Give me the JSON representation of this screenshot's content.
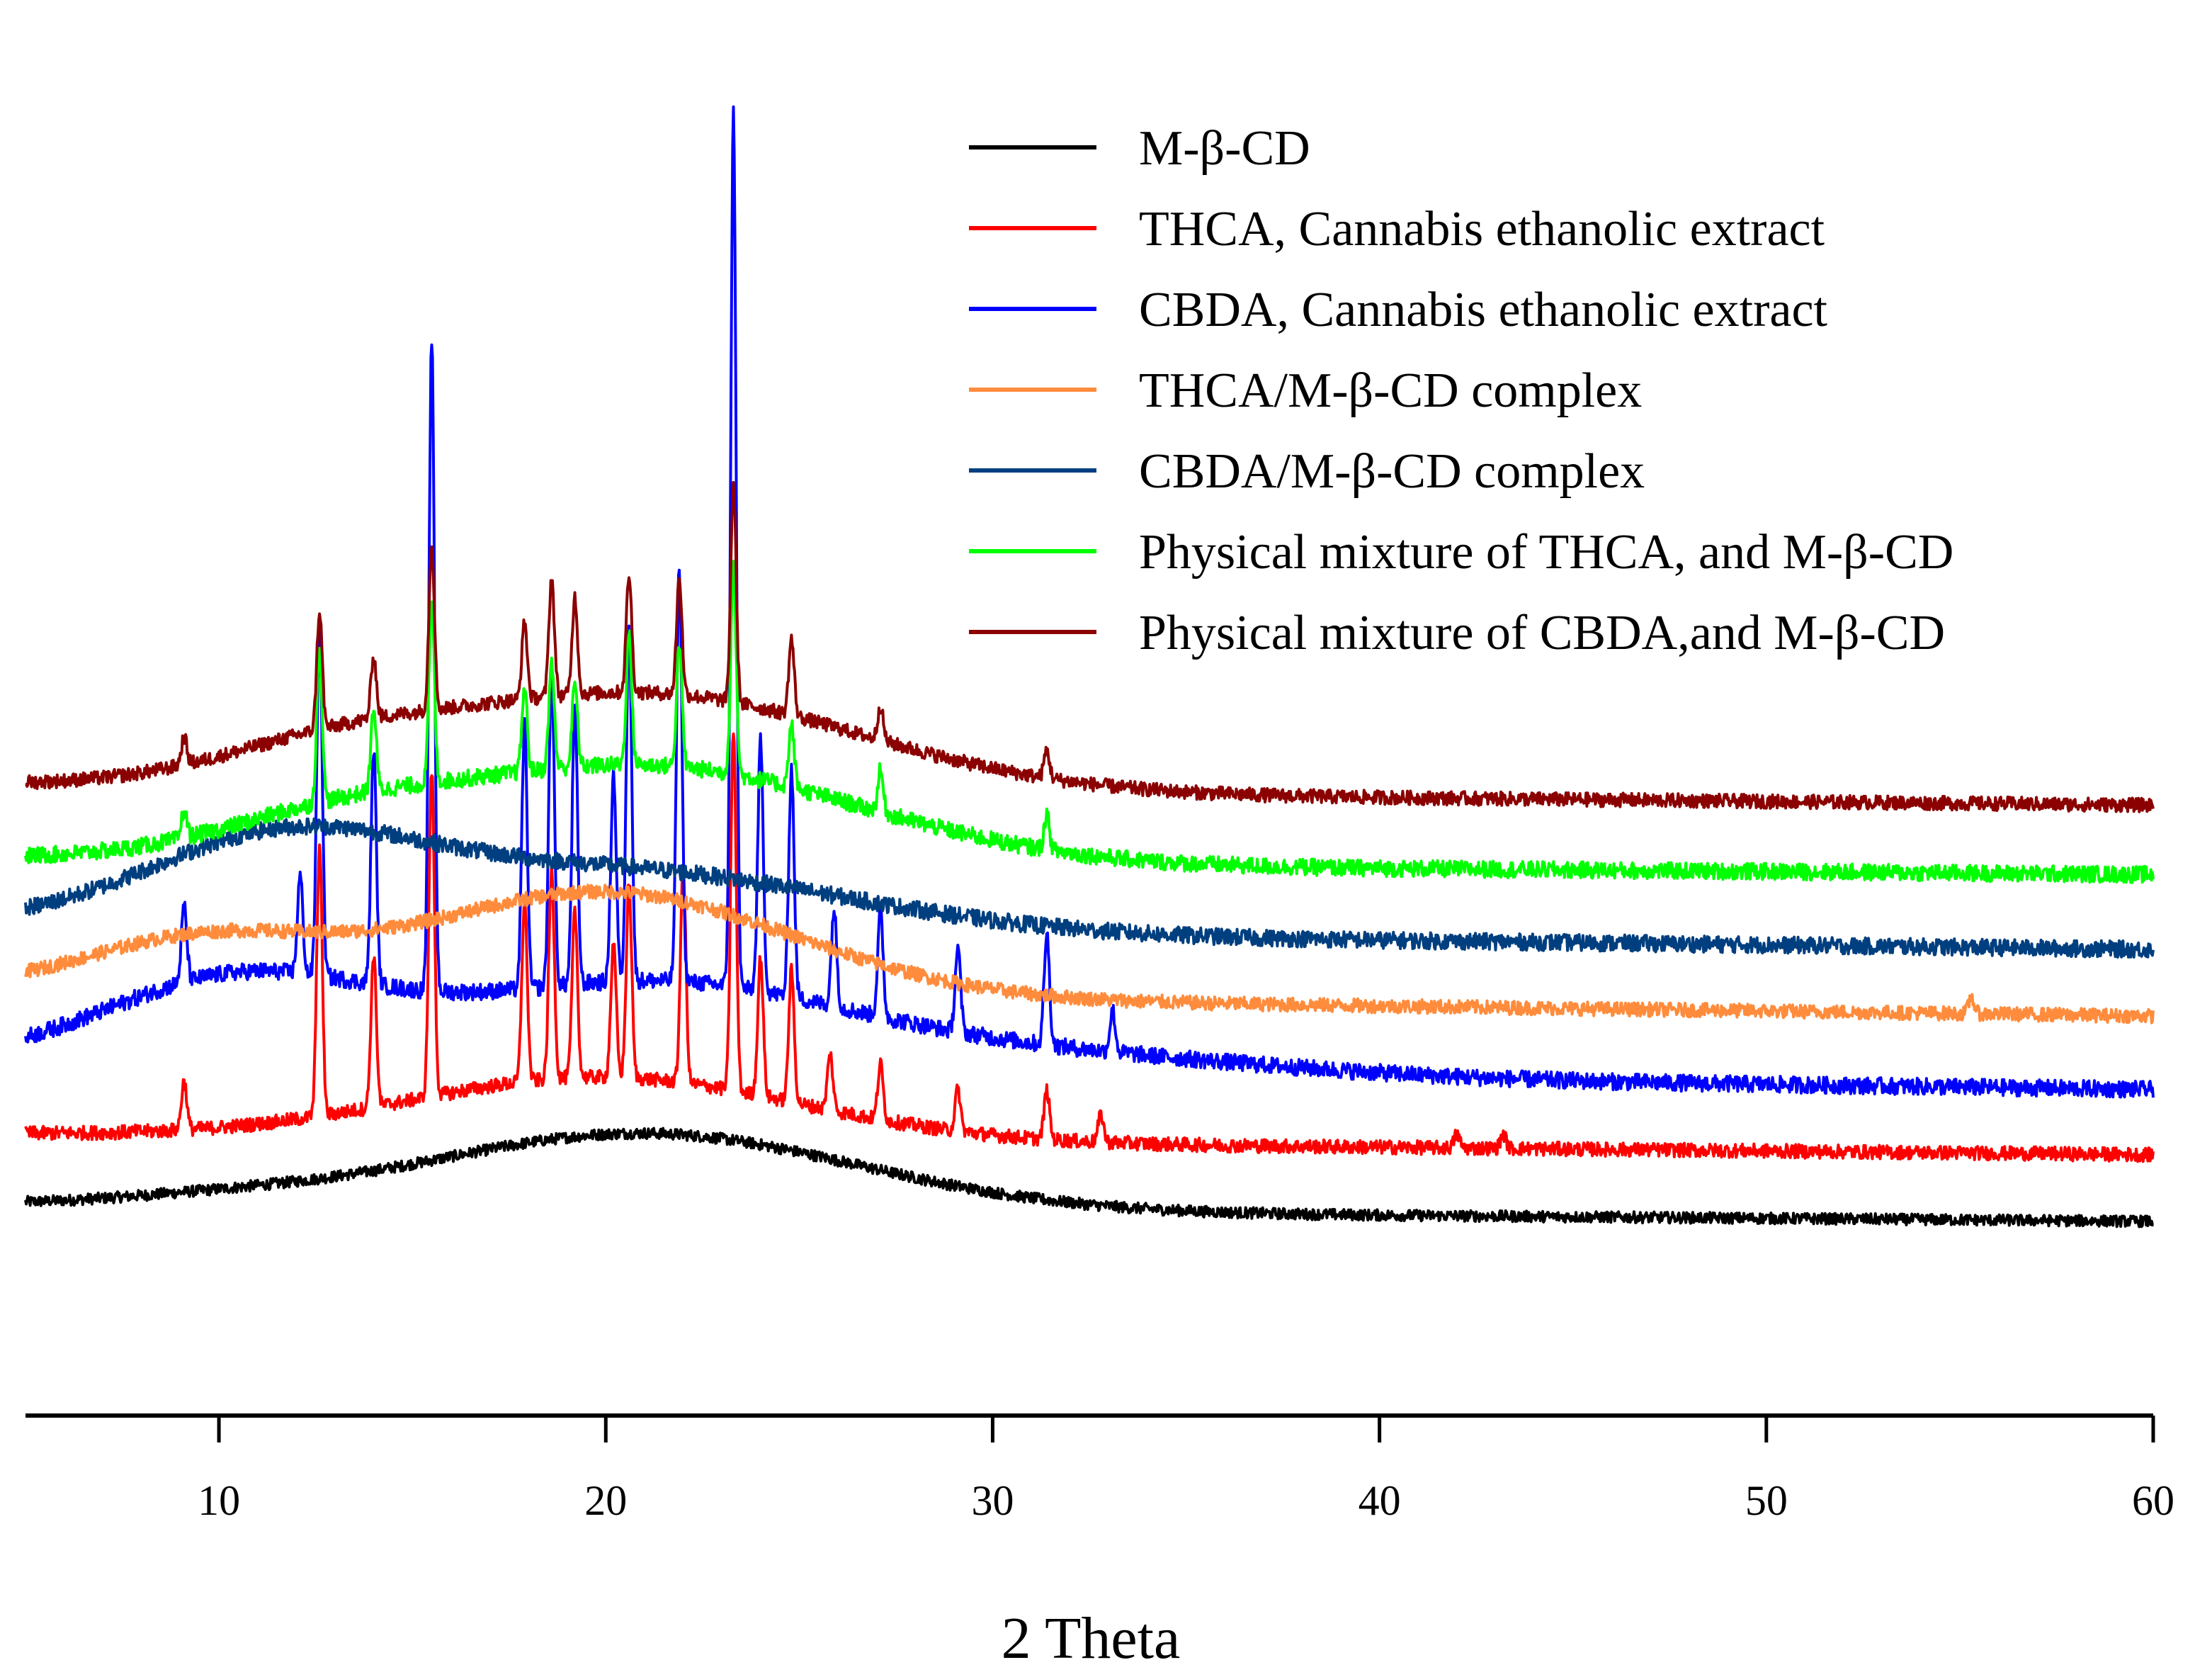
{
  "chart_data": {
    "type": "line",
    "title": "",
    "xlabel": "2 Theta",
    "ylabel": "",
    "xlim": [
      5,
      60
    ],
    "ylim": [
      0,
      1000
    ],
    "xticks": [
      10,
      20,
      30,
      40,
      50,
      60
    ],
    "grid": false,
    "legend_position": "top-right",
    "series": [
      {
        "name": "M-β-CD",
        "color": "#000000",
        "baseline_start": 152,
        "baseline_end": 140,
        "noise": 4,
        "humps": [
          [
            21,
            5.5,
            55
          ],
          [
            10,
            3,
            5
          ]
        ],
        "peaks": []
      },
      {
        "name": "THCA, Cannabis ethanolic extract",
        "color": "#ff0000",
        "baseline_start": 203,
        "baseline_end": 188,
        "noise": 5,
        "humps": [
          [
            20,
            5,
            45
          ]
        ],
        "peaks": [
          [
            9.1,
            35
          ],
          [
            12.6,
            195
          ],
          [
            14.0,
            110
          ],
          [
            15.5,
            235
          ],
          [
            17.9,
            130
          ],
          [
            18.6,
            150
          ],
          [
            19.2,
            120
          ],
          [
            20.2,
            95
          ],
          [
            20.6,
            140
          ],
          [
            22.0,
            155
          ],
          [
            23.3,
            260
          ],
          [
            24.0,
            100
          ],
          [
            24.8,
            95
          ],
          [
            25.8,
            40
          ],
          [
            27.1,
            40
          ],
          [
            29.1,
            30
          ],
          [
            31.4,
            35
          ],
          [
            32.8,
            20
          ],
          [
            42.0,
            10
          ],
          [
            43.2,
            10
          ]
        ]
      },
      {
        "name": "CBDA, Cannabis ethanolic extract",
        "color": "#0000ff",
        "baseline_start": 255,
        "baseline_end": 235,
        "noise": 6,
        "humps": [
          [
            10.5,
            3.5,
            60
          ],
          [
            21,
            5,
            60
          ],
          [
            31,
            6,
            15
          ]
        ],
        "peaks": [
          [
            9.1,
            55
          ],
          [
            12.1,
            70
          ],
          [
            12.6,
            255
          ],
          [
            14.0,
            170
          ],
          [
            15.5,
            470
          ],
          [
            17.9,
            190
          ],
          [
            18.6,
            230
          ],
          [
            19.2,
            200
          ],
          [
            20.2,
            150
          ],
          [
            20.6,
            260
          ],
          [
            21.9,
            300
          ],
          [
            23.3,
            630
          ],
          [
            24.0,
            180
          ],
          [
            24.8,
            165
          ],
          [
            25.9,
            70
          ],
          [
            27.1,
            75
          ],
          [
            29.1,
            60
          ],
          [
            31.4,
            80
          ],
          [
            33.1,
            30
          ]
        ]
      },
      {
        "name": "THCA/M-β-CD complex",
        "color": "#ff8c3c",
        "baseline_start": 308,
        "baseline_end": 288,
        "noise": 5,
        "humps": [
          [
            9.5,
            3.0,
            35
          ],
          [
            20,
            4.8,
            75
          ]
        ],
        "peaks": [
          [
            55.3,
            12
          ]
        ]
      },
      {
        "name": "CBDA/M-β-CD complex",
        "color": "#003f7f",
        "baseline_start": 354,
        "baseline_end": 336,
        "noise": 6,
        "humps": [
          [
            11.5,
            3.5,
            55
          ],
          [
            20,
            6,
            45
          ]
        ],
        "peaks": []
      },
      {
        "name": "Physical mixture of THCA, and M-β-CD",
        "color": "#00ff00",
        "baseline_start": 402,
        "baseline_end": 390,
        "noise": 6,
        "humps": [
          [
            21,
            5.5,
            70
          ],
          [
            13,
            3,
            20
          ]
        ],
        "peaks": [
          [
            9.1,
            20
          ],
          [
            12.6,
            110
          ],
          [
            14.0,
            60
          ],
          [
            15.5,
            130
          ],
          [
            17.9,
            60
          ],
          [
            18.6,
            75
          ],
          [
            19.2,
            60
          ],
          [
            20.6,
            95
          ],
          [
            21.9,
            90
          ],
          [
            23.3,
            150
          ],
          [
            24.8,
            45
          ],
          [
            27.1,
            30
          ],
          [
            31.4,
            25
          ]
        ]
      },
      {
        "name": "Physical mixture of CBDA,and M-β-CD",
        "color": "#8b0000",
        "baseline_start": 455,
        "baseline_end": 440,
        "noise": 5,
        "humps": [
          [
            21,
            5.5,
            70
          ],
          [
            13,
            3,
            20
          ]
        ],
        "peaks": [
          [
            9.1,
            20
          ],
          [
            12.6,
            85
          ],
          [
            14.0,
            45
          ],
          [
            15.5,
            120
          ],
          [
            17.9,
            55
          ],
          [
            18.6,
            85
          ],
          [
            19.2,
            70
          ],
          [
            20.6,
            85
          ],
          [
            21.9,
            85
          ],
          [
            23.3,
            155
          ],
          [
            24.8,
            55
          ],
          [
            27.1,
            25
          ],
          [
            31.4,
            20
          ]
        ]
      }
    ]
  }
}
